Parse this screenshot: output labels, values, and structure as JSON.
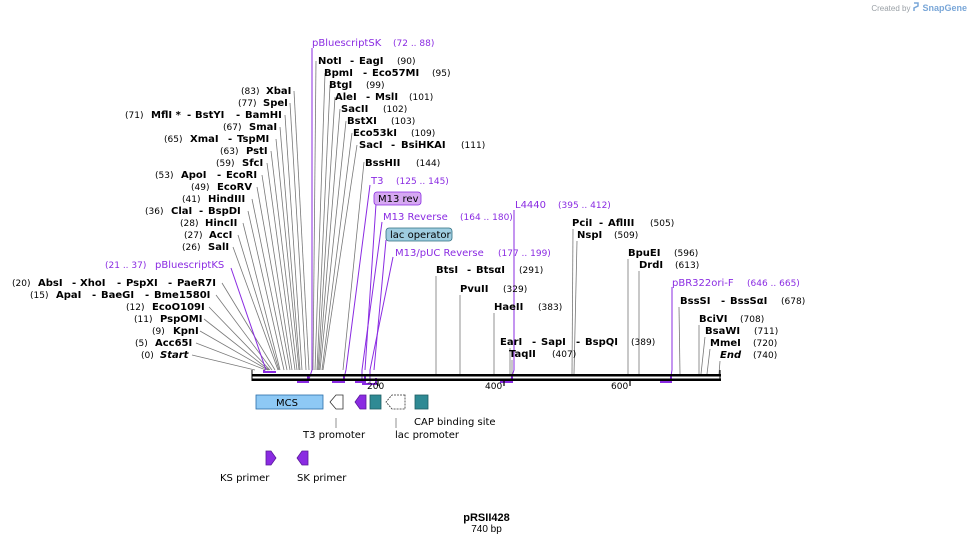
{
  "credit": {
    "created_by": "Created by",
    "brand": "SnapGene"
  },
  "plasmid": {
    "name": "pRSII428",
    "length": "740 bp"
  },
  "ticks": [
    "200",
    "400",
    "600"
  ],
  "sites": {
    "not": {
      "name": "NotI",
      "name2": "EagI",
      "pos": "(90)"
    },
    "bpm": {
      "name": "BpmI",
      "name2": "Eco57MI",
      "pos": "(95)"
    },
    "btg": {
      "name": "BtgI",
      "pos": "(99)"
    },
    "ale": {
      "name": "AleI",
      "name2": "MslI",
      "pos": "(101)"
    },
    "sac2": {
      "name": "SacII",
      "pos": "(102)"
    },
    "bstx": {
      "name": "BstXI",
      "pos": "(103)"
    },
    "eco53": {
      "name": "Eco53kI",
      "pos": "(109)"
    },
    "sac1": {
      "name": "SacI",
      "name2": "BsiHKAI",
      "pos": "(111)"
    },
    "bsshii": {
      "name": "BssHII",
      "pos": "(144)"
    },
    "xba": {
      "name": "XbaI",
      "pos": "(83)"
    },
    "spe": {
      "name": "SpeI",
      "pos": "(77)"
    },
    "mfl": {
      "name": "MflI *",
      "name2": "BstYI",
      "name3": "BamHI",
      "pos": "(71)"
    },
    "sma": {
      "name": "SmaI",
      "pos": "(67)"
    },
    "xma": {
      "name": "XmaI",
      "name2": "TspMI",
      "pos": "(65)"
    },
    "pst": {
      "name": "PstI",
      "pos": "(63)"
    },
    "sfc": {
      "name": "SfcI",
      "pos": "(59)"
    },
    "apo": {
      "name": "ApoI",
      "name2": "EcoRI",
      "pos": "(53)"
    },
    "ecorv": {
      "name": "EcoRV",
      "pos": "(49)"
    },
    "hind": {
      "name": "HindIII",
      "pos": "(41)"
    },
    "cla": {
      "name": "ClaI",
      "name2": "BspDI",
      "pos": "(36)"
    },
    "hinc": {
      "name": "HincII",
      "pos": "(28)"
    },
    "acc": {
      "name": "AccI",
      "pos": "(27)"
    },
    "sal": {
      "name": "SalI",
      "pos": "(26)"
    },
    "abs": {
      "name": "AbsI",
      "name2": "XhoI",
      "name3": "PspXI",
      "name4": "PaeR7I",
      "pos": "(20)"
    },
    "apa": {
      "name": "ApaI",
      "name2": "BaeGI",
      "name3": "Bme1580I",
      "pos": "(15)"
    },
    "eco109": {
      "name": "EcoO109I",
      "pos": "(12)"
    },
    "pspomi": {
      "name": "PspOMI",
      "pos": "(11)"
    },
    "kpn": {
      "name": "KpnI",
      "pos": "(9)"
    },
    "acc65": {
      "name": "Acc65I",
      "pos": "(5)"
    },
    "start": {
      "name": "Start",
      "pos": "(0)"
    },
    "bts": {
      "name": "BtsI",
      "name2": "BtsαI",
      "pos": "(291)"
    },
    "pvu2": {
      "name": "PvuII",
      "pos": "(329)"
    },
    "hae2": {
      "name": "HaeII",
      "pos": "(383)"
    },
    "ear": {
      "name": "EarI",
      "name2": "SapI",
      "name3": "BspQI",
      "pos": "(389)"
    },
    "taq2": {
      "name": "TaqII",
      "pos": "(407)"
    },
    "pci": {
      "name": "PciI",
      "name2": "AflIII",
      "pos": "(505)"
    },
    "nsp": {
      "name": "NspI",
      "pos": "(509)"
    },
    "bpuei": {
      "name": "BpuEI",
      "pos": "(596)"
    },
    "drd": {
      "name": "DrdI",
      "pos": "(613)"
    },
    "bsssi": {
      "name": "BssSI",
      "name2": "BssSαI",
      "pos": "(678)"
    },
    "bcivi": {
      "name": "BciVI",
      "pos": "(708)"
    },
    "bsawi": {
      "name": "BsaWI",
      "pos": "(711)"
    },
    "mme": {
      "name": "MmeI",
      "pos": "(720)"
    },
    "end": {
      "name": "End",
      "pos": "(740)"
    }
  },
  "primers": {
    "sk": {
      "name": "pBluescriptSK",
      "range": "(72 .. 88)"
    },
    "t3": {
      "name": "T3",
      "range": "(125 .. 145)"
    },
    "m13rev": {
      "name": "M13 Reverse",
      "range": "(164 .. 180)"
    },
    "m13puc": {
      "name": "M13/pUC Reverse",
      "range": "(177 .. 199)"
    },
    "ks": {
      "name": "pBluescriptKS",
      "range": "(21 .. 37)"
    },
    "l4440": {
      "name": "L4440",
      "range": "(395 .. 412)"
    },
    "pbr": {
      "name": "pBR322ori-F",
      "range": "(646 .. 665)"
    }
  },
  "boxes": {
    "m13rev": "M13 rev",
    "lacop": "lac operator",
    "mcs": "MCS"
  },
  "features": {
    "t3prom": "T3 promoter",
    "cap": "CAP binding site",
    "lacprom": "lac promoter",
    "ksprimer": "KS primer",
    "skprimer": "SK primer"
  },
  "colors": {
    "primer": "#8a2be2",
    "mcs_fill": "#8ec9f5",
    "m13_fill": "#d6a8f2",
    "lacop_fill": "#9fcde0",
    "teal": "#2f8a94",
    "backbone": "#000000"
  }
}
